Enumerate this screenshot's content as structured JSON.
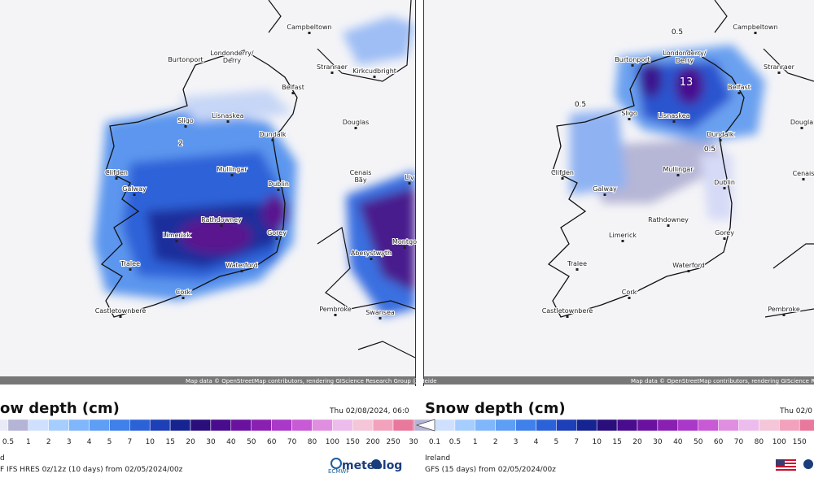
{
  "panels": [
    {
      "map_labels": [
        "Campbeltown",
        "Londonderry/",
        "Derry",
        "Burtonport",
        "Stranraer",
        "Kirkcudbright",
        "Belfast",
        "Sligo",
        "Lisnaskea",
        "Douglas",
        "Dundalk",
        "2",
        "Mullingar",
        "Clifden",
        "Dublin",
        "Galway",
        "Cenais",
        "Bay",
        "Liv",
        "Rathdowney",
        "Limerick",
        "Gorey",
        "Montgo",
        "Aberystwyth",
        "Tralee",
        "Waterford",
        "Cork",
        "Castletownbere",
        "Pembroke",
        "Swansea"
      ],
      "attribution": "Map data © OpenStreetMap contributors, rendering GIScience Research Group @ Heide",
      "title": "ow depth (cm)",
      "date": "Thu 02/08/2024, 06:0",
      "scale_labels": [
        "0.5",
        "1",
        "2",
        "3",
        "4",
        "5",
        "7",
        "10",
        "15",
        "20",
        "30",
        "40",
        "50",
        "60",
        "70",
        "80",
        "100",
        "150",
        "200",
        "250",
        "30"
      ],
      "region": "d",
      "model": "F IFS HRES 0z/12z (10 days) from 02/05/2024/00z",
      "logos": [
        "ECMWF",
        "meteolog"
      ]
    },
    {
      "map_labels": [
        "Campbeltown",
        "0.5",
        "Londonderry/",
        "Derry",
        "Burtonport",
        "Stranraer",
        "Belfast",
        "13",
        "0.5",
        "Sligo",
        "Lisnaskea",
        "Dougla",
        "Dundalk",
        "0.5",
        "Mullingar",
        "Clifden",
        "Dublin",
        "Galway",
        "Cenais",
        "Rathdowney",
        "Limerick",
        "Gorey",
        "Tralee",
        "Waterford",
        "Cork",
        "Castletownbere",
        "Pembroke"
      ],
      "attribution": "Map data © OpenStreetMap contributors, rendering GIScience Research Group @ Heidelberg University",
      "title": "Snow depth (cm)",
      "date": "Thu 02/0",
      "scale_labels": [
        "0.1",
        "0.5",
        "1",
        "2",
        "3",
        "4",
        "5",
        "7",
        "10",
        "15",
        "20",
        "30",
        "40",
        "50",
        "60",
        "70",
        "80",
        "100",
        "150"
      ],
      "region": "Ireland",
      "model": "GFS (15 days) from 02/05/2024/00z",
      "logos": []
    }
  ]
}
